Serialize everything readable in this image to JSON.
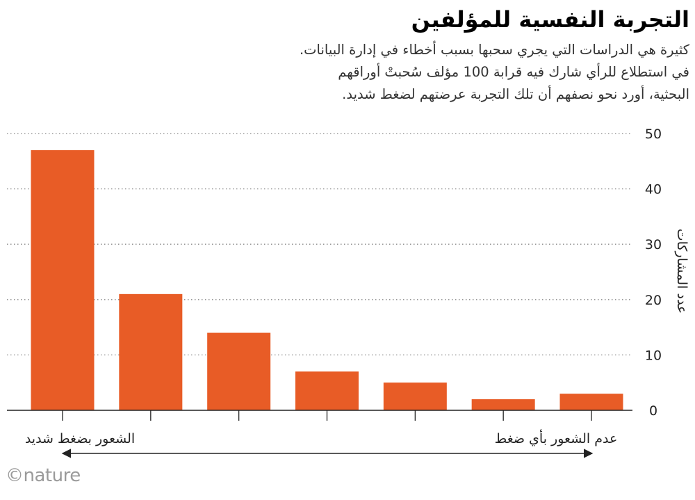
{
  "header": {
    "title": "التجربة النفسية للمؤلفين",
    "subtitle_lines": [
      "كثيرة هي الدراسات التي يجري سحبها بسبب أخطاء في إدارة البيانات.",
      "في استطلاع للرأي شارك فيه قرابة 100 مؤلف سُحبتْ أوراقهم",
      "البحثية، أورد نحو نصفهم أن تلك التجربة عرضتهم لضغط شديد."
    ]
  },
  "branding": {
    "logo_text": "©nature"
  },
  "colors": {
    "bar": "#E85C26",
    "grid": "#888888",
    "text": "#222222"
  },
  "chart_data": {
    "type": "bar",
    "values": [
      47,
      21,
      14,
      7,
      5,
      2,
      3
    ],
    "ylabel": "عدد المشاركات",
    "ylim": [
      0,
      50
    ],
    "yticks": [
      0,
      10,
      20,
      30,
      40,
      50
    ],
    "grid": true,
    "y_axis_side": "right",
    "scale_end_labels": {
      "left": "الشعور بضغط شديد",
      "right": "عدم الشعور بأي ضغط"
    }
  }
}
